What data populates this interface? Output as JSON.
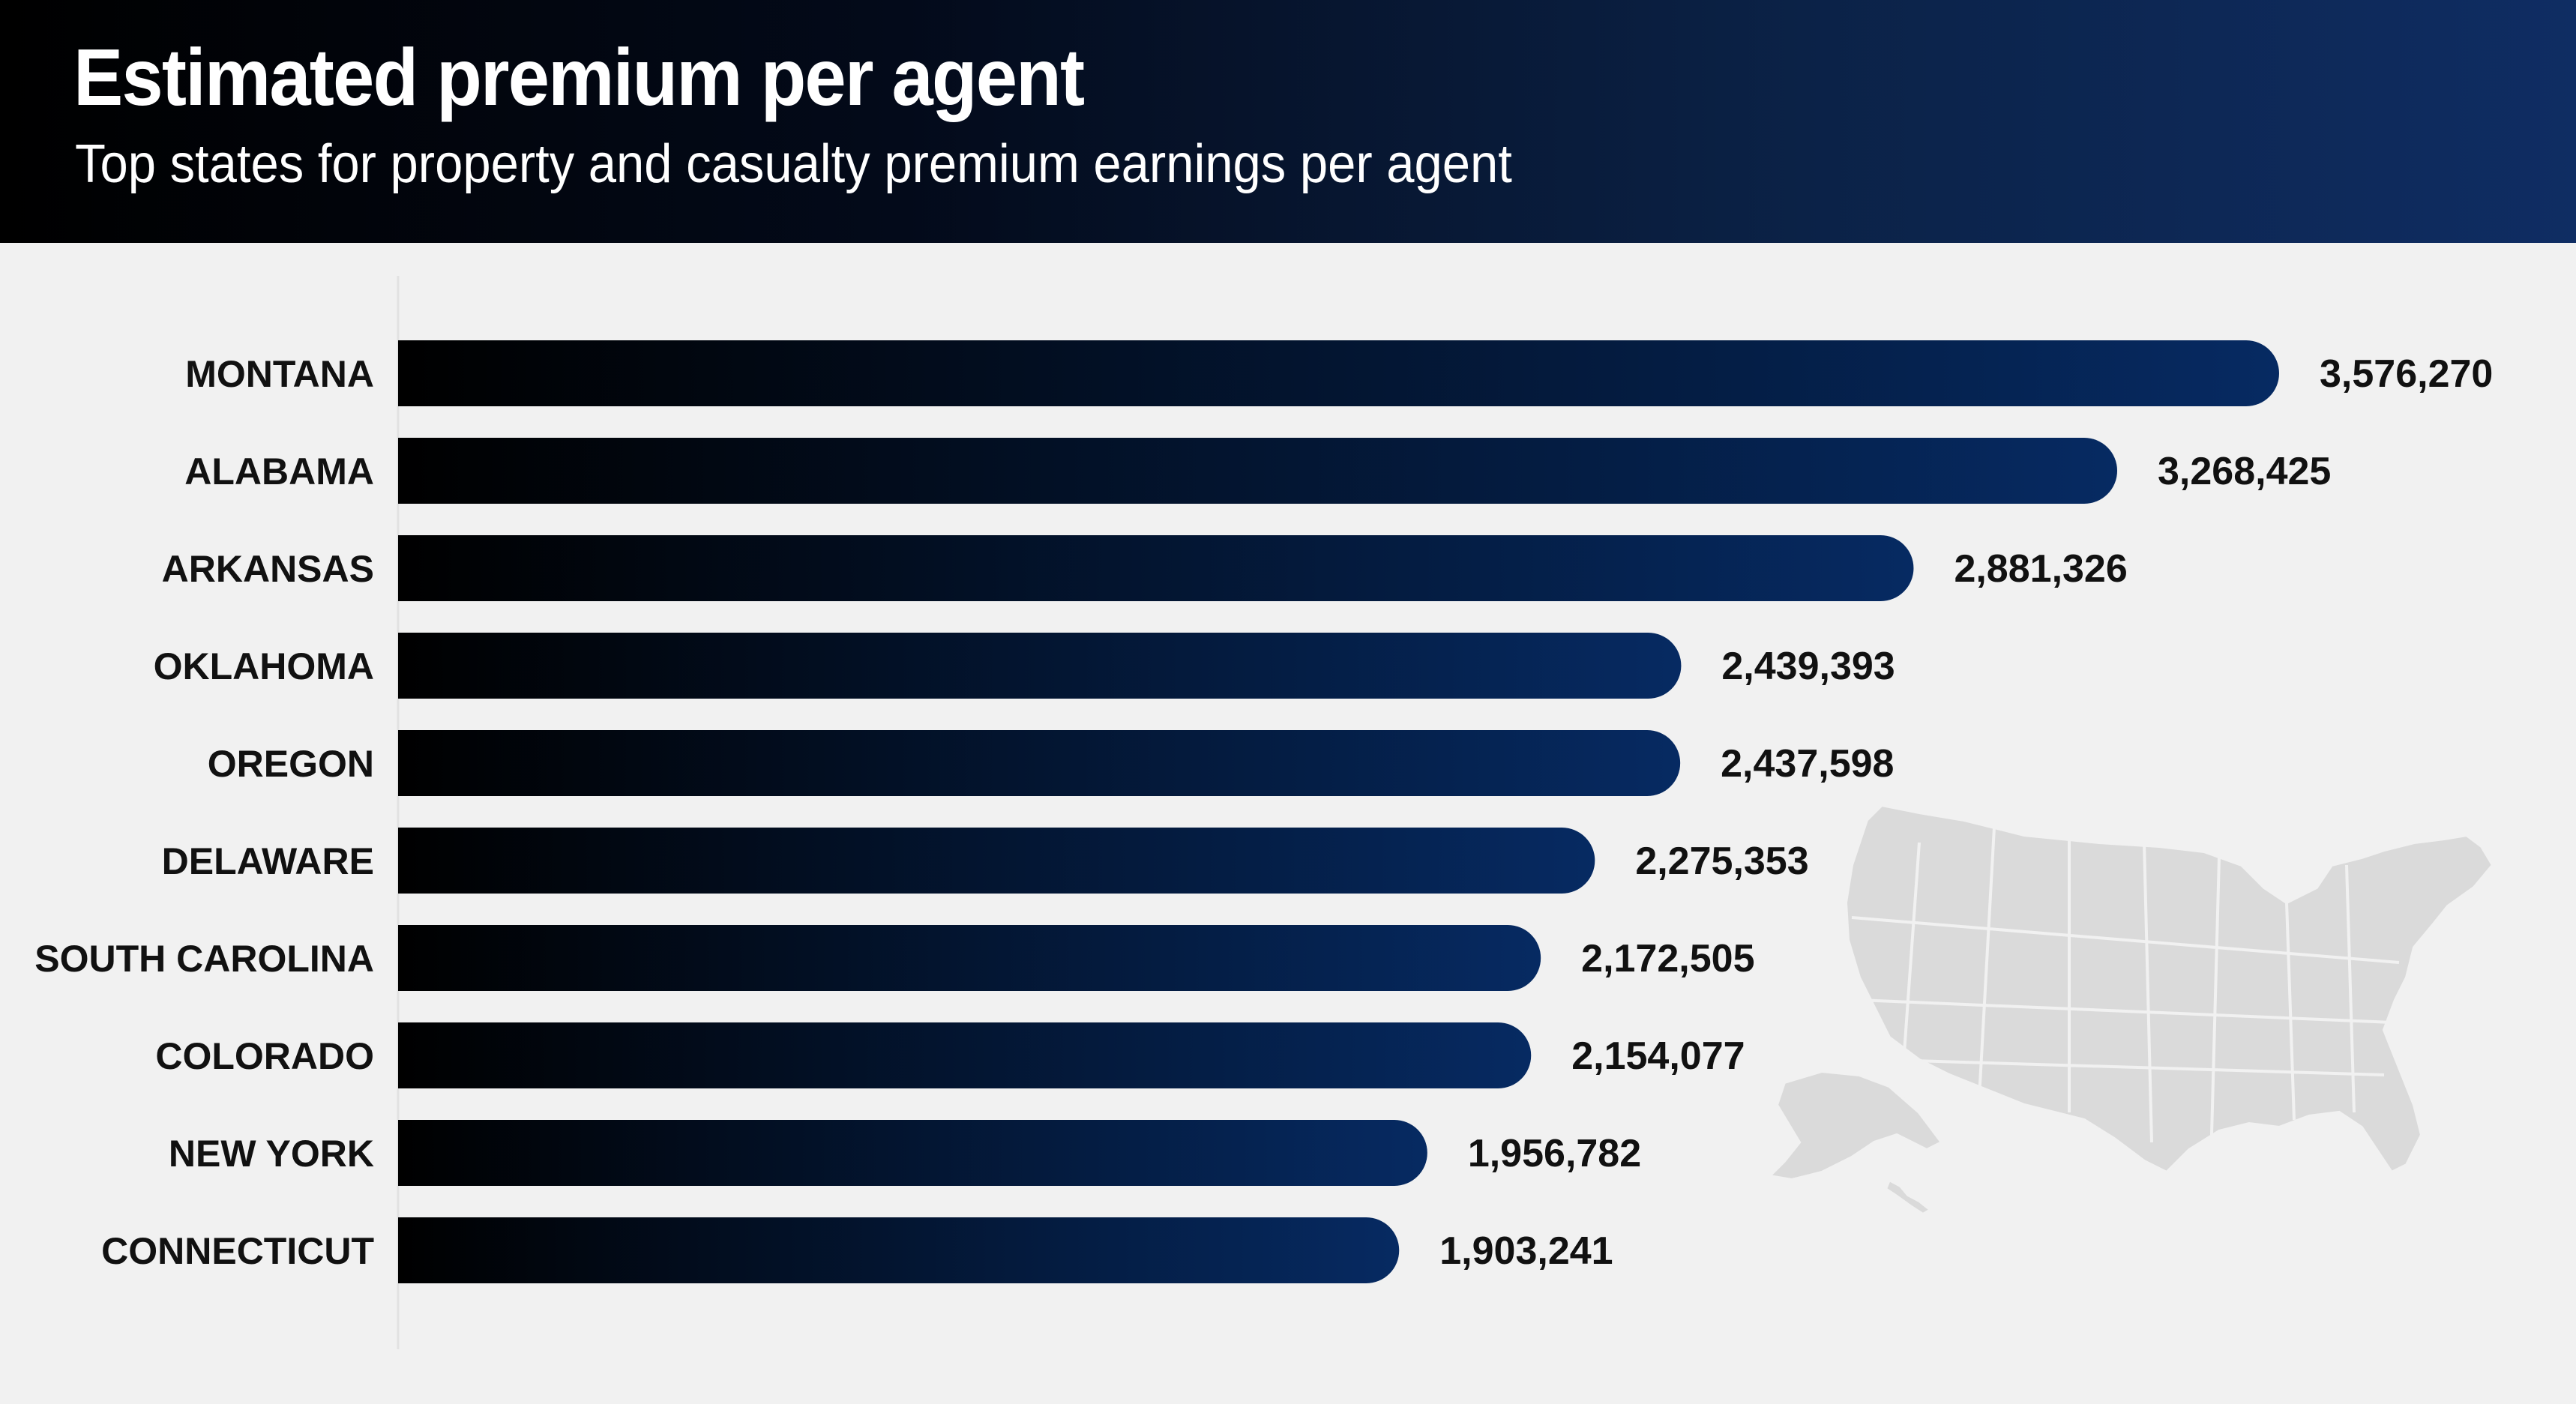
{
  "header": {
    "title": "Estimated premium per agent",
    "subtitle": "Top states for property and casualty premium earnings per agent"
  },
  "colors": {
    "bar_start": "#000000",
    "bar_end": "#062a62",
    "header_start": "#000000",
    "header_end": "#0f2d63",
    "background": "#f1f1f1",
    "map": "#dadada"
  },
  "map_icon": "usa-map-icon",
  "chart_data": {
    "type": "bar",
    "orientation": "horizontal",
    "title": "Estimated premium per agent",
    "subtitle": "Top states for property and casualty premium earnings per agent",
    "categories": [
      "MONTANA",
      "ALABAMA",
      "ARKANSAS",
      "OKLAHOMA",
      "OREGON",
      "DELAWARE",
      "SOUTH CAROLINA",
      "COLORADO",
      "NEW YORK",
      "CONNECTICUT"
    ],
    "values": [
      3576270,
      3268425,
      2881326,
      2439393,
      2437598,
      2275353,
      2172505,
      2154077,
      1956782,
      1903241
    ],
    "value_labels": [
      "3,576,270",
      "3,268,425",
      "2,881,326",
      "2,439,393",
      "2,437,598",
      "2,275,353",
      "2,172,505",
      "2,154,077",
      "1,956,782",
      "1,903,241"
    ],
    "xlim": [
      0,
      3576270
    ],
    "grid": false,
    "legend": "none"
  }
}
